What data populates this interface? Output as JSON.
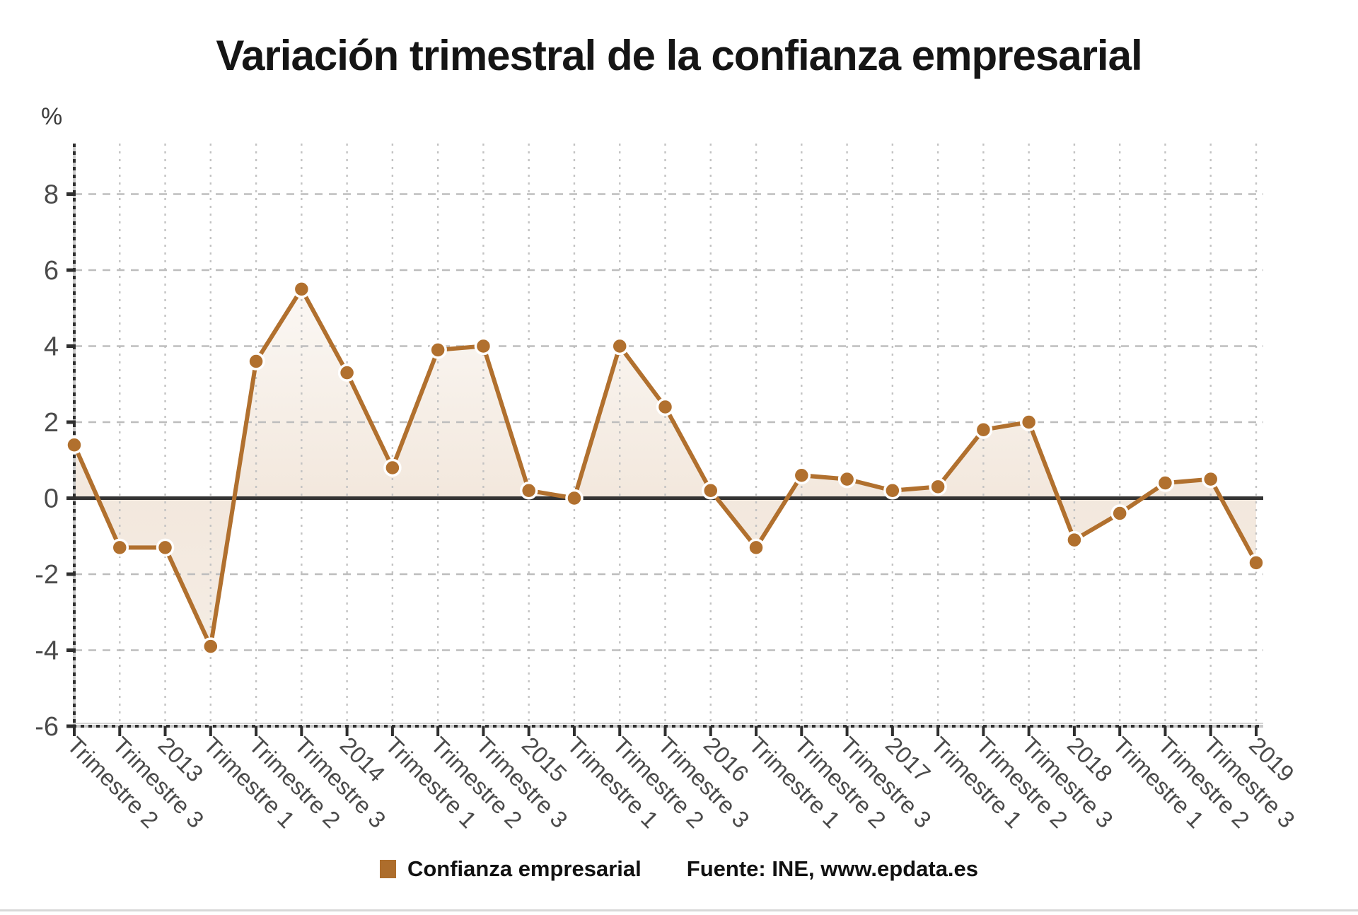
{
  "title": "Variación trimestral de la confianza empresarial",
  "y_axis_unit": "%",
  "legend": {
    "series_label": "Confianza empresarial",
    "source_label": "Fuente: INE, www.epdata.es",
    "swatch_color": "#ad6d2c"
  },
  "colors": {
    "line": "#b1702e",
    "marker_fill": "#b1702e",
    "marker_ring": "#ffffff",
    "area_tint": "177,111,44",
    "zero_line": "#333333",
    "grid": "#bdbdbd",
    "grid_vertical": "#c3c3c3",
    "axis_dark": "#2f2f2f",
    "axis_light": "#c9c9c9",
    "tick_label": "#4a4a4a"
  },
  "chart_data": {
    "type": "line",
    "title": "Variación trimestral de la confianza empresarial",
    "series_name": "Confianza empresarial",
    "categories": [
      "Trimestre 2",
      "Trimestre 3",
      "2013",
      "Trimestre 1",
      "Trimestre 2",
      "Trimestre 3",
      "2014",
      "Trimestre 1",
      "Trimestre 2",
      "Trimestre 3",
      "2015",
      "Trimestre 1",
      "Trimestre 2",
      "Trimestre 3",
      "2016",
      "Trimestre 1",
      "Trimestre 2",
      "Trimestre 3",
      "2017",
      "Trimestre 1",
      "Trimestre 2",
      "Trimestre 3",
      "2018",
      "Trimestre 1",
      "Trimestre 2",
      "Trimestre 3",
      "2019"
    ],
    "values": [
      1.4,
      -1.3,
      -1.3,
      -3.9,
      3.6,
      5.5,
      3.3,
      0.8,
      3.9,
      4.0,
      0.2,
      0.0,
      4.0,
      2.4,
      0.2,
      -1.3,
      0.6,
      0.5,
      0.2,
      0.3,
      1.8,
      2.0,
      -1.1,
      -0.4,
      0.4,
      0.5,
      -1.7
    ],
    "ylabel": "%",
    "xlabel": "",
    "ylim": [
      -6,
      8
    ],
    "yticks": [
      8,
      6,
      4,
      2,
      0,
      -2,
      -4,
      -6
    ],
    "grid": true,
    "baseline": 0,
    "marker": "circle",
    "legend_position": "bottom"
  }
}
